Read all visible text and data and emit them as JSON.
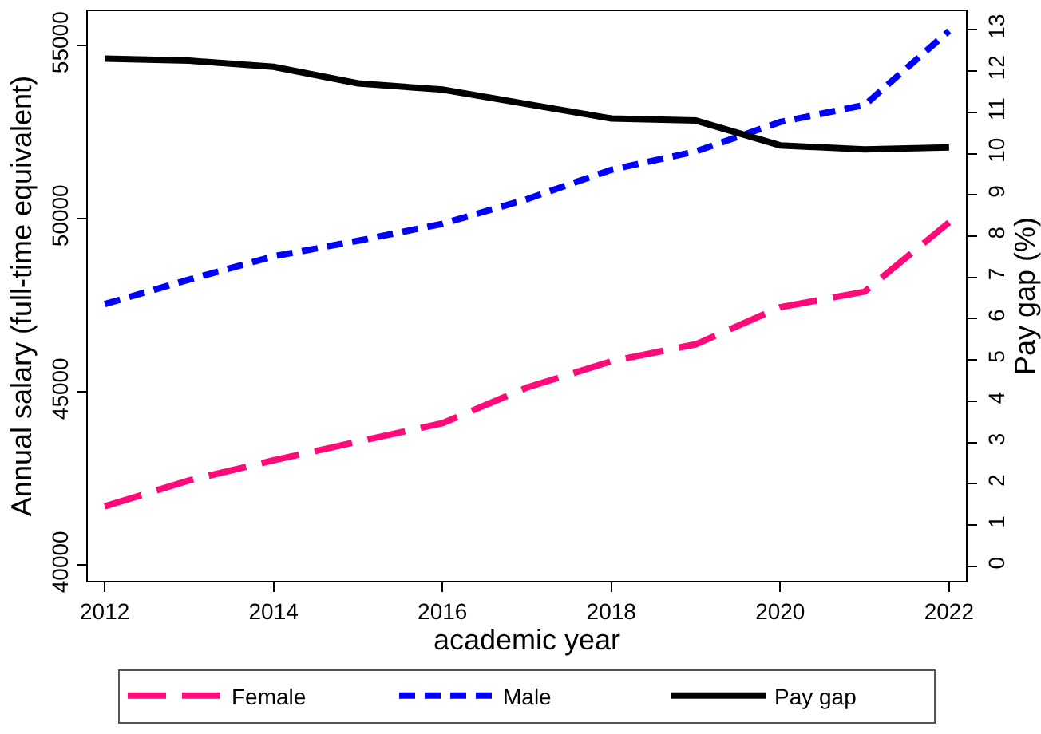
{
  "chart_data": {
    "type": "line",
    "xlabel": "academic year",
    "ylabel": "Annual salary (full-time equivalent)",
    "y2label": "Pay gap (%)",
    "x": [
      2012,
      2013,
      2014,
      2015,
      2016,
      2017,
      2018,
      2019,
      2020,
      2021,
      2022
    ],
    "xlim": [
      2011.8,
      2022.2
    ],
    "xticks": [
      2012,
      2014,
      2016,
      2018,
      2020,
      2022
    ],
    "ylim": [
      39550,
      56000
    ],
    "yticks": [
      40000,
      45000,
      50000,
      55000
    ],
    "y2lim": [
      -0.35,
      13.45
    ],
    "y2ticks": [
      0,
      1,
      2,
      3,
      4,
      5,
      6,
      7,
      8,
      9,
      10,
      11,
      12,
      13
    ],
    "legend": "bottom",
    "marker": "none",
    "series": [
      {
        "name": "Female",
        "color": "#ff0a78",
        "line_style": "dashed",
        "values": [
          41700,
          42450,
          43030,
          43570,
          44100,
          45130,
          45890,
          46380,
          47450,
          47900,
          49900
        ]
      },
      {
        "name": "Male",
        "color": "#0000ff",
        "line_style": "dashed",
        "values": [
          47540,
          48250,
          48920,
          49370,
          49860,
          50570,
          51420,
          51950,
          52800,
          53290,
          55430
        ]
      },
      {
        "name": "Pay gap",
        "color": "#000000",
        "line_style": "solid",
        "axis": "y2",
        "values": [
          12.3,
          12.25,
          12.1,
          11.7,
          11.55,
          11.2,
          10.85,
          10.8,
          10.2,
          10.1,
          10.15
        ]
      }
    ]
  }
}
